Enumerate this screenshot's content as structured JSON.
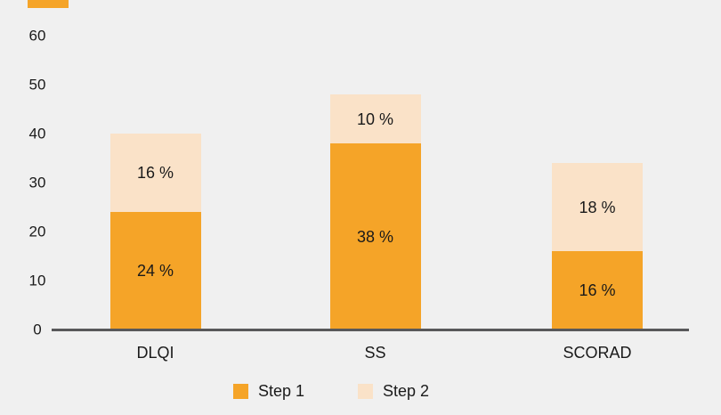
{
  "canvas": {
    "background_color": "#f0f0f0",
    "axis_line_color": "#58585a",
    "text_color": "#1a1a1a"
  },
  "decor": {
    "accent_strip_color": "#f5a428"
  },
  "chart_data": {
    "type": "bar",
    "stacked": true,
    "title": "",
    "xlabel": "",
    "ylabel": "",
    "categories": [
      "DLQI",
      "SS",
      "SCORAD"
    ],
    "series": [
      {
        "name": "Step 1",
        "color": "#f5a428",
        "values": [
          24,
          38,
          16
        ],
        "labels": [
          "24 %",
          "38 %",
          "16 %"
        ]
      },
      {
        "name": "Step 2",
        "color": "#fae2c8",
        "values": [
          16,
          10,
          18
        ],
        "labels": [
          "16 %",
          "10 %",
          "18 %"
        ]
      }
    ],
    "totals": [
      40,
      48,
      34
    ],
    "ylim": [
      0,
      60
    ],
    "yticks": [
      0,
      10,
      20,
      30,
      40,
      50,
      60
    ],
    "grid": false,
    "legend_position": "bottom"
  }
}
